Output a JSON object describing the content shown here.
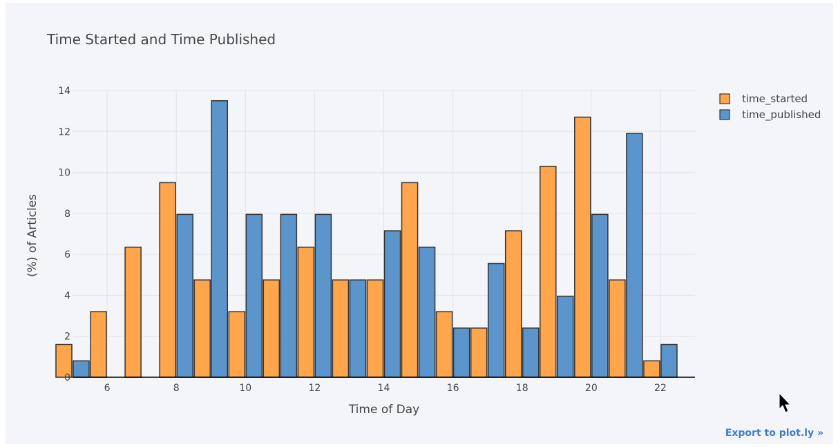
{
  "chart_data": {
    "type": "bar",
    "title": "Time Started and Time Published",
    "xlabel": "Time of Day",
    "ylabel": "(%) of Articles",
    "xlim": [
      5,
      23
    ],
    "ylim": [
      0,
      14
    ],
    "x_ticks": [
      6,
      8,
      10,
      12,
      14,
      16,
      18,
      20,
      22
    ],
    "y_ticks": [
      0,
      2,
      4,
      6,
      8,
      10,
      12,
      14
    ],
    "grid": true,
    "legend_position": "top-right",
    "x": [
      5,
      6,
      7,
      8,
      9,
      10,
      11,
      12,
      13,
      14,
      15,
      16,
      17,
      18,
      19,
      20,
      21,
      22
    ],
    "series": [
      {
        "name": "time_started",
        "color": "#ffa64d",
        "values": [
          1.6,
          3.2,
          6.35,
          9.5,
          4.75,
          3.2,
          4.75,
          6.35,
          4.75,
          4.75,
          9.5,
          3.2,
          2.4,
          7.15,
          10.3,
          12.7,
          4.75,
          0.8
        ]
      },
      {
        "name": "time_published",
        "color": "#5b95cc",
        "values": [
          0.8,
          0,
          0,
          7.95,
          13.5,
          7.95,
          7.95,
          7.95,
          4.75,
          7.15,
          6.35,
          2.4,
          5.55,
          2.4,
          3.95,
          7.95,
          11.9,
          1.6
        ]
      }
    ]
  },
  "export_label": "Export to plot.ly »"
}
